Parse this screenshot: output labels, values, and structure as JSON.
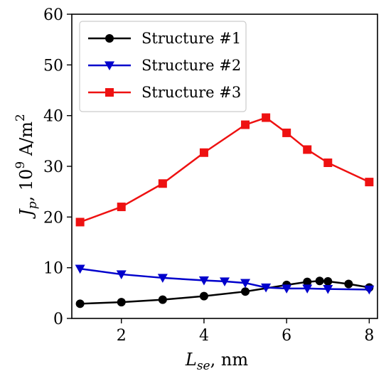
{
  "chart_data": {
    "type": "line",
    "xlabel": "L_se, nm",
    "xlabel_main": "L",
    "xlabel_sub": "se",
    "xlabel_unit": ", nm",
    "ylabel": "J_p, 10^9 A/m^2",
    "ylabel_main": "J",
    "ylabel_sub": "p",
    "ylabel_unit": ", 10",
    "ylabel_exp": "9",
    "ylabel_unit2": " A/m",
    "ylabel_exp2": "2",
    "xlim": [
      0.8,
      8.2
    ],
    "ylim": [
      0,
      60
    ],
    "xticks": [
      2,
      4,
      6,
      8
    ],
    "yticks": [
      0,
      10,
      20,
      30,
      40,
      50,
      60
    ],
    "grid": false,
    "legend_position": "top-left",
    "series": [
      {
        "name": "Structure #1",
        "color": "#000000",
        "marker": "circle",
        "x": [
          1,
          2,
          3,
          4,
          5,
          6,
          6.5,
          6.8,
          7,
          7.5,
          8
        ],
        "y": [
          2.9,
          3.2,
          3.7,
          4.4,
          5.3,
          6.6,
          7.2,
          7.4,
          7.3,
          6.8,
          6.1
        ]
      },
      {
        "name": "Structure #2",
        "color": "#0000cc",
        "marker": "triangle-down",
        "x": [
          1,
          2,
          3,
          4,
          4.5,
          5,
          5.5,
          6,
          6.5,
          7,
          8
        ],
        "y": [
          9.8,
          8.7,
          8.0,
          7.5,
          7.3,
          7.0,
          6.1,
          5.9,
          5.9,
          5.8,
          5.7
        ]
      },
      {
        "name": "Structure #3",
        "color": "#ee1111",
        "marker": "square",
        "x": [
          1,
          2,
          3,
          4,
          5,
          5.5,
          6,
          6.5,
          7,
          8
        ],
        "y": [
          19.0,
          22.0,
          26.6,
          32.7,
          38.2,
          39.6,
          36.6,
          33.3,
          30.7,
          26.9
        ]
      }
    ]
  }
}
